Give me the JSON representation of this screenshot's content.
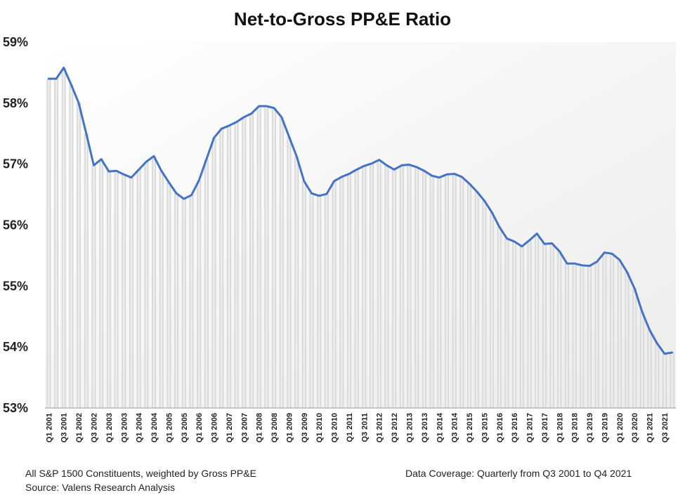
{
  "chart_data": {
    "type": "line",
    "title": "Net-to-Gross PP&E Ratio",
    "ylim": [
      53,
      59
    ],
    "yticks": [
      "53%",
      "54%",
      "55%",
      "56%",
      "57%",
      "58%",
      "59%"
    ],
    "ytick_values": [
      53,
      54,
      55,
      56,
      57,
      58,
      59
    ],
    "x_tick_labels": [
      "Q1 2001",
      "Q3 2001",
      "Q1 2002",
      "Q3 2002",
      "Q1 2003",
      "Q3 2003",
      "Q1 2004",
      "Q3 2004",
      "Q1 2005",
      "Q3 2005",
      "Q1 2006",
      "Q3 2006",
      "Q1 2007",
      "Q3 2007",
      "Q1 2008",
      "Q3 2008",
      "Q1 2009",
      "Q3 2009",
      "Q1 2010",
      "Q3 2010",
      "Q1 2011",
      "Q3 2011",
      "Q1 2012",
      "Q3 2012",
      "Q1 2013",
      "Q3 2013",
      "Q1 2014",
      "Q3 2014",
      "Q1 2015",
      "Q3 2015",
      "Q1 2016",
      "Q3 2016",
      "Q1 2017",
      "Q3 2017",
      "Q1 2018",
      "Q3 2018",
      "Q1 2019",
      "Q3 2019",
      "Q1 2020",
      "Q3 2020",
      "Q1 2021",
      "Q3 2021"
    ],
    "series": [
      {
        "color": "#4472C4",
        "values": [
          58.4,
          58.4,
          58.58,
          58.3,
          58.0,
          57.5,
          56.98,
          57.08,
          56.88,
          56.89,
          56.83,
          56.78,
          56.91,
          57.04,
          57.13,
          56.89,
          56.7,
          56.52,
          56.43,
          56.49,
          56.73,
          57.08,
          57.43,
          57.58,
          57.63,
          57.69,
          57.77,
          57.83,
          57.95,
          57.95,
          57.92,
          57.77,
          57.45,
          57.13,
          56.72,
          56.52,
          56.48,
          56.51,
          56.72,
          56.79,
          56.84,
          56.91,
          56.97,
          57.01,
          57.07,
          56.98,
          56.91,
          56.98,
          56.99,
          56.95,
          56.89,
          56.81,
          56.78,
          56.83,
          56.84,
          56.79,
          56.68,
          56.55,
          56.4,
          56.21,
          55.97,
          55.78,
          55.73,
          55.65,
          55.75,
          55.86,
          55.69,
          55.7,
          55.57,
          55.37,
          55.37,
          55.34,
          55.33,
          55.4,
          55.55,
          55.53,
          55.43,
          55.23,
          54.96,
          54.58,
          54.28,
          54.06,
          53.89,
          53.91
        ]
      }
    ],
    "bar_color": "#d9d9d9",
    "bar_highlight": "#f4f4f4"
  },
  "footnotes": {
    "left_line1": "All S&P 1500 Constituents, weighted by Gross PP&E",
    "left_line2": "Source: Valens Research Analysis",
    "right": "Data Coverage: Quarterly from Q3 2001 to Q4 2021"
  }
}
